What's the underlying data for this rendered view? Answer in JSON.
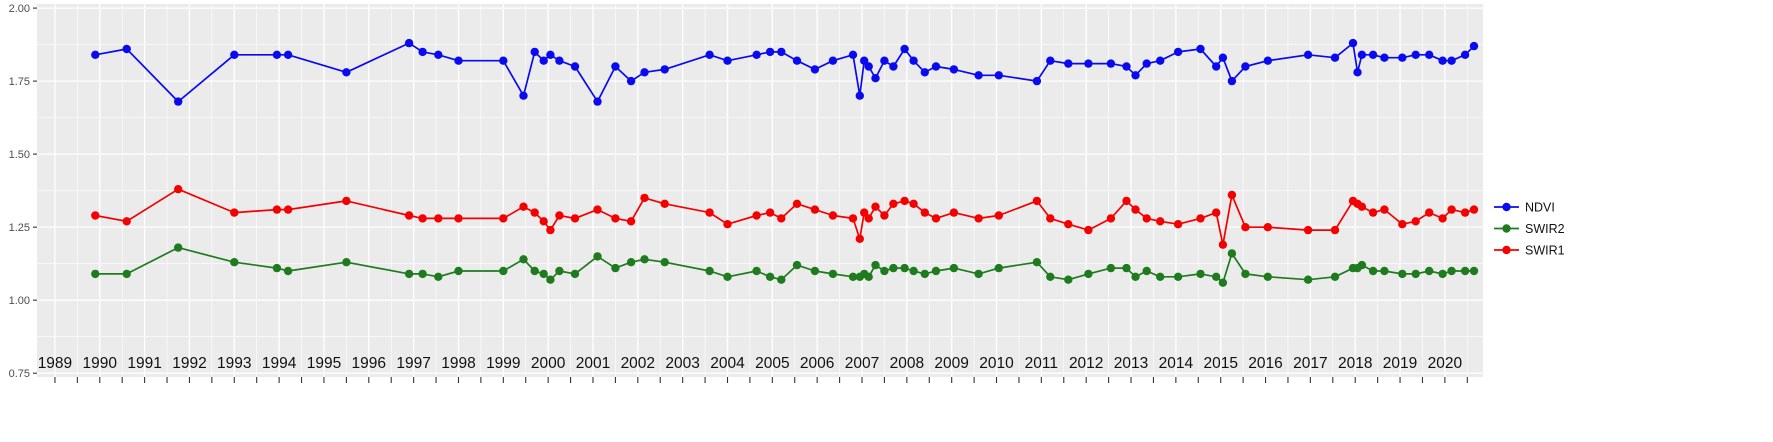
{
  "chart_data": {
    "type": "line",
    "title": "",
    "xlabel": "",
    "ylabel": "",
    "x": [
      1989.9,
      1990.6,
      1991.75,
      1993.0,
      1993.95,
      1994.2,
      1995.5,
      1996.9,
      1997.2,
      1997.55,
      1998.0,
      1999.0,
      1999.45,
      1999.7,
      1999.9,
      2000.05,
      2000.25,
      2000.6,
      2001.1,
      2001.5,
      2001.85,
      2002.15,
      2002.6,
      2003.6,
      2004.0,
      2004.65,
      2004.95,
      2005.2,
      2005.55,
      2005.95,
      2006.35,
      2006.8,
      2006.95,
      2007.05,
      2007.15,
      2007.3,
      2007.5,
      2007.7,
      2007.95,
      2008.15,
      2008.4,
      2008.65,
      2009.05,
      2009.6,
      2010.05,
      2010.9,
      2011.2,
      2011.6,
      2012.05,
      2012.55,
      2012.9,
      2013.1,
      2013.35,
      2013.65,
      2014.05,
      2014.55,
      2014.9,
      2015.05,
      2015.25,
      2015.55,
      2016.05,
      2016.95,
      2017.55,
      2017.95,
      2018.05,
      2018.15,
      2018.4,
      2018.65,
      2019.05,
      2019.35,
      2019.65,
      2019.95,
      2020.15,
      2020.45,
      2020.65
    ],
    "series": [
      {
        "name": "NDVI",
        "color": "#0A0AF0",
        "values": [
          1.84,
          1.86,
          1.68,
          1.84,
          1.84,
          1.84,
          1.78,
          1.88,
          1.85,
          1.84,
          1.82,
          1.82,
          1.7,
          1.85,
          1.82,
          1.84,
          1.82,
          1.8,
          1.68,
          1.8,
          1.75,
          1.78,
          1.79,
          1.84,
          1.82,
          1.84,
          1.85,
          1.85,
          1.82,
          1.79,
          1.82,
          1.84,
          1.7,
          1.82,
          1.8,
          1.76,
          1.82,
          1.8,
          1.86,
          1.82,
          1.78,
          1.8,
          1.79,
          1.77,
          1.77,
          1.75,
          1.82,
          1.81,
          1.81,
          1.81,
          1.8,
          1.77,
          1.81,
          1.82,
          1.85,
          1.86,
          1.8,
          1.83,
          1.75,
          1.8,
          1.82,
          1.84,
          1.83,
          1.88,
          1.78,
          1.84,
          1.84,
          1.83,
          1.83,
          1.84,
          1.84,
          1.82,
          1.82,
          1.84,
          1.87
        ]
      },
      {
        "name": "SWIR2",
        "color": "#1E7B1E",
        "values": [
          1.09,
          1.09,
          1.18,
          1.13,
          1.11,
          1.1,
          1.13,
          1.09,
          1.09,
          1.08,
          1.1,
          1.1,
          1.14,
          1.1,
          1.09,
          1.07,
          1.1,
          1.09,
          1.15,
          1.11,
          1.13,
          1.14,
          1.13,
          1.1,
          1.08,
          1.1,
          1.08,
          1.07,
          1.12,
          1.1,
          1.09,
          1.08,
          1.08,
          1.09,
          1.08,
          1.12,
          1.1,
          1.11,
          1.11,
          1.1,
          1.09,
          1.1,
          1.11,
          1.09,
          1.11,
          1.13,
          1.08,
          1.07,
          1.09,
          1.11,
          1.11,
          1.08,
          1.1,
          1.08,
          1.08,
          1.09,
          1.08,
          1.06,
          1.16,
          1.09,
          1.08,
          1.07,
          1.08,
          1.11,
          1.11,
          1.12,
          1.1,
          1.1,
          1.09,
          1.09,
          1.1,
          1.09,
          1.1,
          1.1,
          1.1
        ]
      },
      {
        "name": "SWIR1",
        "color": "#F50000",
        "values": [
          1.29,
          1.27,
          1.38,
          1.3,
          1.31,
          1.31,
          1.34,
          1.29,
          1.28,
          1.28,
          1.28,
          1.28,
          1.32,
          1.3,
          1.27,
          1.24,
          1.29,
          1.28,
          1.31,
          1.28,
          1.27,
          1.35,
          1.33,
          1.3,
          1.26,
          1.29,
          1.3,
          1.28,
          1.33,
          1.31,
          1.29,
          1.28,
          1.21,
          1.3,
          1.28,
          1.32,
          1.29,
          1.33,
          1.34,
          1.33,
          1.3,
          1.28,
          1.3,
          1.28,
          1.29,
          1.34,
          1.28,
          1.26,
          1.24,
          1.28,
          1.34,
          1.31,
          1.28,
          1.27,
          1.26,
          1.28,
          1.3,
          1.19,
          1.36,
          1.25,
          1.25,
          1.24,
          1.24,
          1.34,
          1.33,
          1.32,
          1.3,
          1.31,
          1.26,
          1.27,
          1.3,
          1.28,
          1.31,
          1.3,
          1.31
        ]
      }
    ],
    "axes": {
      "xlim": [
        1988.6,
        2020.85
      ],
      "ylim": [
        0.737,
        2.014
      ],
      "x_ticks": [
        1989,
        1990,
        1991,
        1992,
        1993,
        1994,
        1995,
        1996,
        1997,
        1998,
        1999,
        2000,
        2001,
        2002,
        2003,
        2004,
        2005,
        2006,
        2007,
        2008,
        2009,
        2010,
        2011,
        2012,
        2013,
        2014,
        2015,
        2016,
        2017,
        2018,
        2019,
        2020
      ],
      "x_minor_step": 0.5,
      "y_ticks": [
        2.0,
        1.75,
        1.5,
        1.25,
        1.0,
        0.75
      ],
      "y_tick_labels": [
        "2.00",
        "1.75",
        "1.50",
        "1.25",
        "1.00",
        "0.75"
      ]
    },
    "legend": {
      "position": "right",
      "entries": [
        "NDVI",
        "SWIR2",
        "SWIR1"
      ]
    },
    "grid": true,
    "style": {
      "panel_bg": "#EBEBEB",
      "grid_color": "#FFFFFF",
      "tick_color": "#333333",
      "x_label_color": "#111111",
      "y_label_color": "#4D4D4D",
      "legend_text_color": "#111111"
    }
  }
}
